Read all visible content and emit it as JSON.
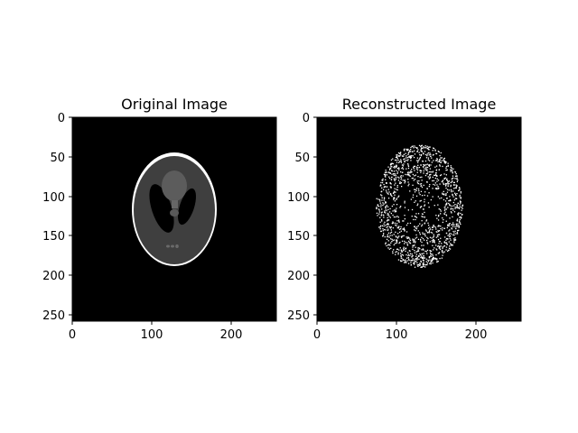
{
  "chart_data": [
    {
      "type": "heatmap",
      "title": "Original Image",
      "image": "shepp-logan-phantom",
      "colormap": "gray",
      "xlim": [
        0,
        256
      ],
      "ylim": [
        256,
        0
      ],
      "xticks": [
        "0",
        "100",
        "200"
      ],
      "yticks": [
        "0",
        "50",
        "100",
        "150",
        "200",
        "250"
      ]
    },
    {
      "type": "heatmap",
      "title": "Reconstructed Image",
      "image": "noisy-sparse-reconstruction",
      "colormap": "gray",
      "xlim": [
        0,
        256
      ],
      "ylim": [
        256,
        0
      ],
      "xticks": [
        "0",
        "100",
        "200"
      ],
      "yticks": [
        "0",
        "50",
        "100",
        "150",
        "200",
        "250"
      ]
    }
  ]
}
